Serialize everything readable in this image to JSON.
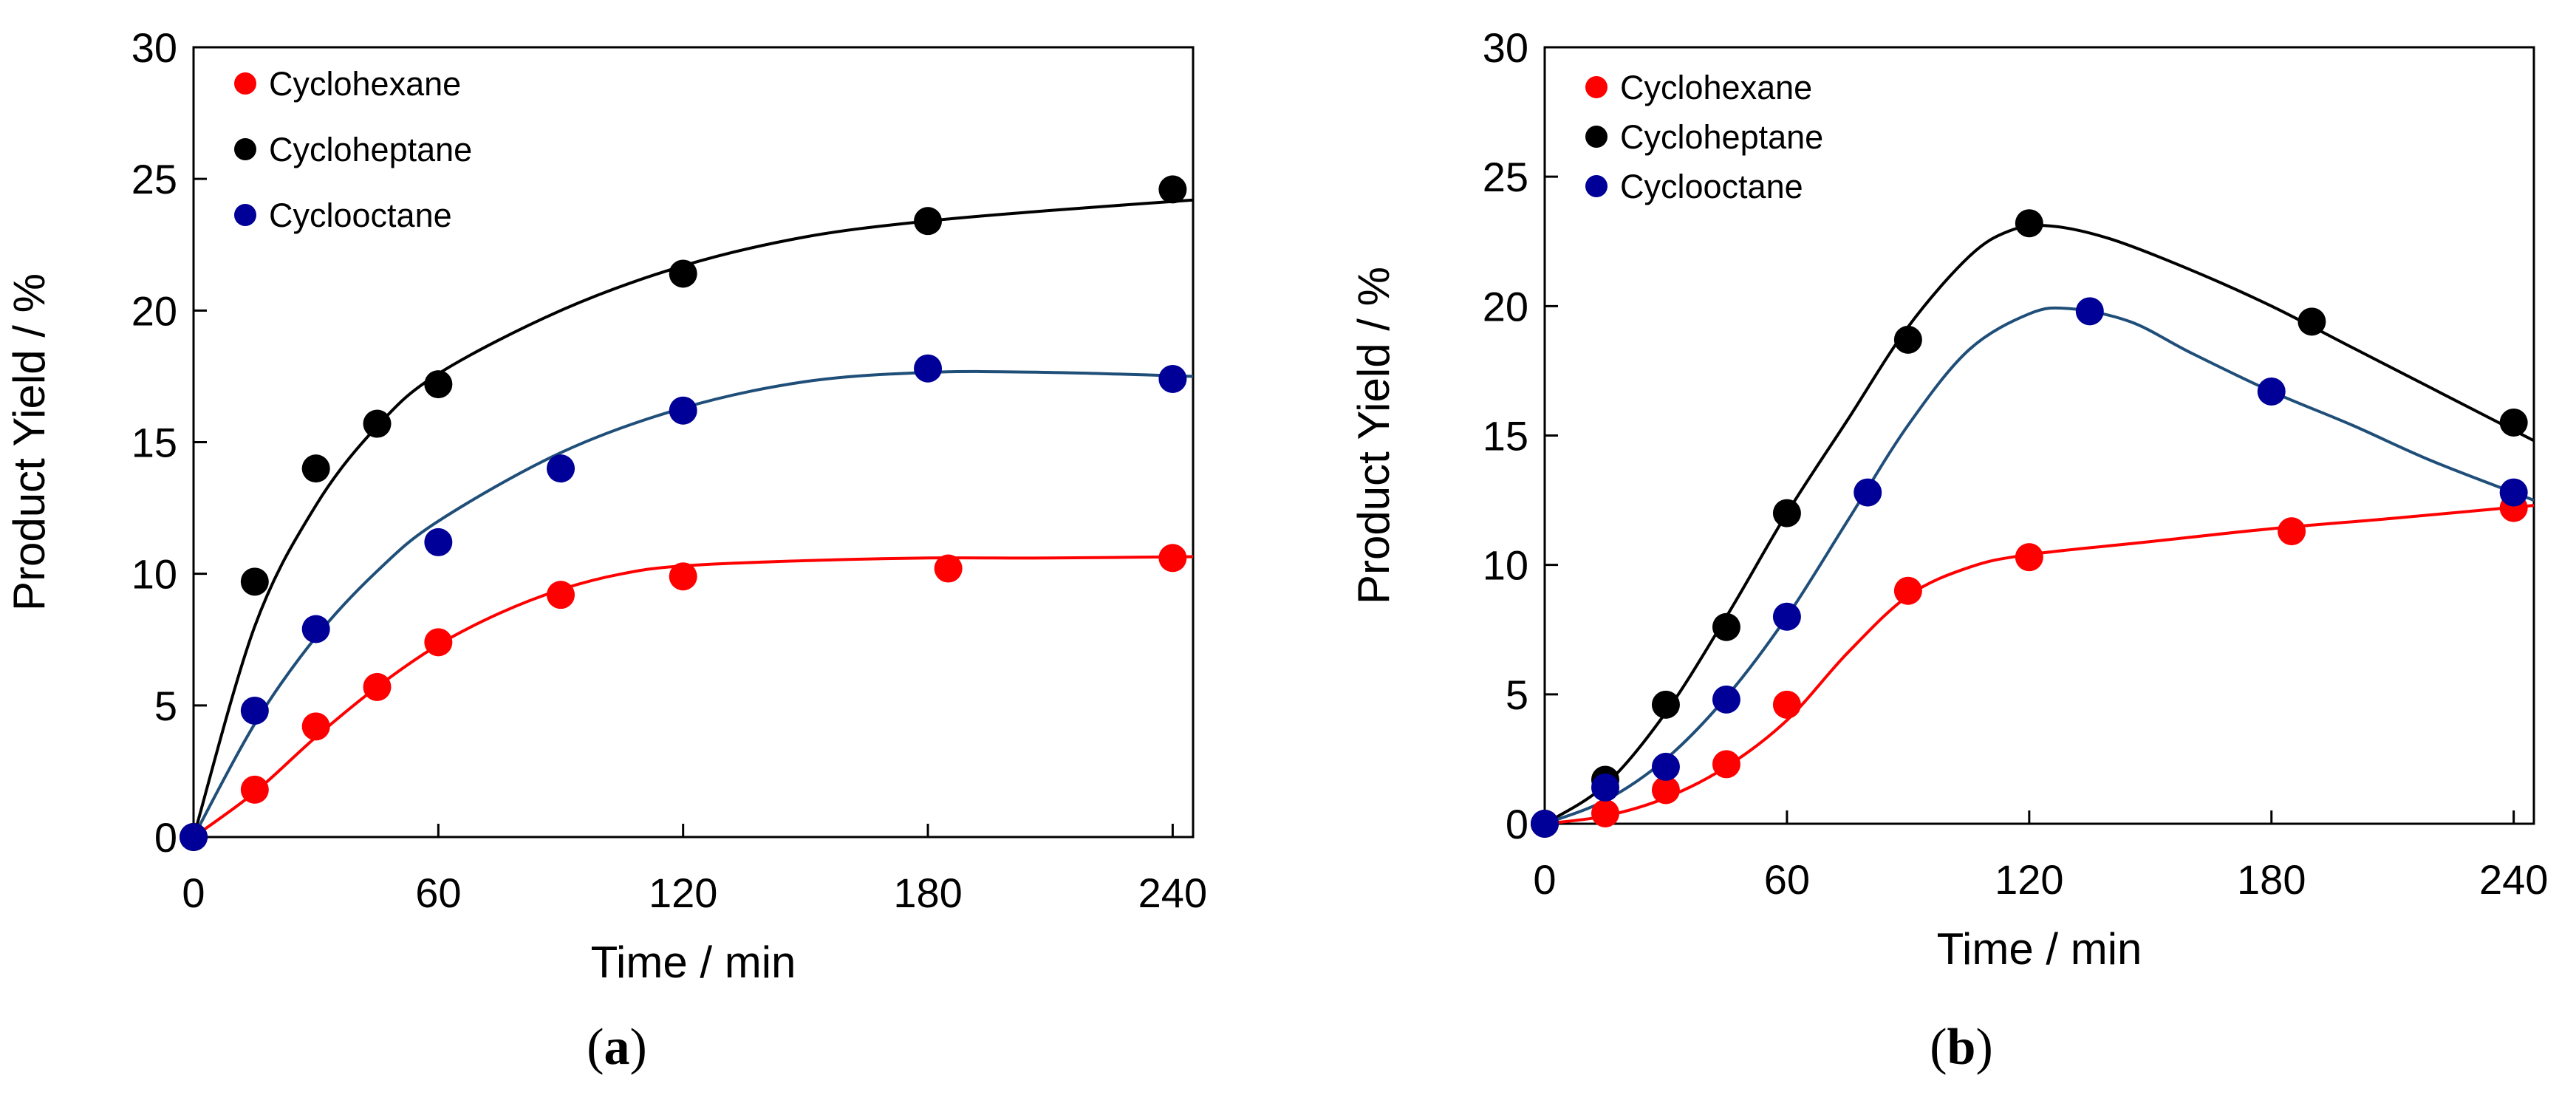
{
  "chart_data": [
    {
      "type": "scatter",
      "panel_label": "a",
      "xlabel": "Time / min",
      "ylabel": "Product Yield / %",
      "xlim": [
        0,
        245
      ],
      "ylim": [
        0,
        30
      ],
      "xticks": [
        0,
        60,
        120,
        180,
        240
      ],
      "yticks": [
        0,
        5,
        10,
        15,
        20,
        25,
        30
      ],
      "legend_position": "top-left",
      "series": [
        {
          "name": "Cyclohexane",
          "color": "#ff0000",
          "line_color": "#ff0000",
          "points": [
            [
              0,
              0
            ],
            [
              15,
              1.8
            ],
            [
              30,
              4.2
            ],
            [
              45,
              5.7
            ],
            [
              60,
              7.4
            ],
            [
              90,
              9.2
            ],
            [
              120,
              9.9
            ],
            [
              185,
              10.2
            ],
            [
              240,
              10.6
            ]
          ],
          "fit": [
            [
              0,
              0
            ],
            [
              15,
              1.7
            ],
            [
              30,
              3.8
            ],
            [
              45,
              5.7
            ],
            [
              60,
              7.3
            ],
            [
              75,
              8.5
            ],
            [
              90,
              9.4
            ],
            [
              105,
              10.0
            ],
            [
              120,
              10.3
            ],
            [
              150,
              10.5
            ],
            [
              180,
              10.6
            ],
            [
              210,
              10.6
            ],
            [
              245,
              10.65
            ]
          ]
        },
        {
          "name": "Cycloheptane",
          "color": "#000000",
          "line_color": "#000000",
          "points": [
            [
              0,
              0
            ],
            [
              15,
              9.7
            ],
            [
              30,
              14.0
            ],
            [
              45,
              15.7
            ],
            [
              60,
              17.2
            ],
            [
              120,
              21.4
            ],
            [
              180,
              23.4
            ],
            [
              240,
              24.6
            ]
          ],
          "fit": [
            [
              0,
              0
            ],
            [
              15,
              8.0
            ],
            [
              30,
              12.6
            ],
            [
              45,
              15.6
            ],
            [
              60,
              17.6
            ],
            [
              90,
              20.0
            ],
            [
              120,
              21.7
            ],
            [
              150,
              22.8
            ],
            [
              180,
              23.4
            ],
            [
              210,
              23.8
            ],
            [
              245,
              24.2
            ]
          ]
        },
        {
          "name": "Cyclooctane",
          "color": "#000099",
          "line_color": "#1f4e79",
          "points": [
            [
              0,
              0
            ],
            [
              15,
              4.8
            ],
            [
              30,
              7.9
            ],
            [
              60,
              11.2
            ],
            [
              90,
              14.0
            ],
            [
              120,
              16.2
            ],
            [
              180,
              17.8
            ],
            [
              240,
              17.4
            ]
          ],
          "fit": [
            [
              0,
              0
            ],
            [
              15,
              4.3
            ],
            [
              30,
              7.6
            ],
            [
              45,
              10.1
            ],
            [
              60,
              12.0
            ],
            [
              90,
              14.6
            ],
            [
              120,
              16.3
            ],
            [
              150,
              17.3
            ],
            [
              180,
              17.65
            ],
            [
              210,
              17.65
            ],
            [
              245,
              17.5
            ]
          ]
        }
      ]
    },
    {
      "type": "scatter",
      "panel_label": "b",
      "xlabel": "Time / min",
      "ylabel": "Product Yield / %",
      "xlim": [
        0,
        245
      ],
      "ylim": [
        0,
        30
      ],
      "xticks": [
        0,
        60,
        120,
        180,
        240
      ],
      "yticks": [
        0,
        5,
        10,
        15,
        20,
        25,
        30
      ],
      "legend_position": "top-left",
      "series": [
        {
          "name": "Cyclohexane",
          "color": "#ff0000",
          "line_color": "#ff0000",
          "points": [
            [
              0,
              0
            ],
            [
              15,
              0.4
            ],
            [
              30,
              1.3
            ],
            [
              45,
              2.3
            ],
            [
              60,
              4.6
            ],
            [
              90,
              9.0
            ],
            [
              120,
              10.3
            ],
            [
              185,
              11.3
            ],
            [
              240,
              12.2
            ]
          ],
          "fit": [
            [
              0,
              0
            ],
            [
              15,
              0.3
            ],
            [
              30,
              1.0
            ],
            [
              45,
              2.2
            ],
            [
              60,
              4.0
            ],
            [
              75,
              6.6
            ],
            [
              90,
              8.8
            ],
            [
              105,
              9.9
            ],
            [
              120,
              10.4
            ],
            [
              150,
              10.9
            ],
            [
              180,
              11.4
            ],
            [
              210,
              11.8
            ],
            [
              245,
              12.3
            ]
          ]
        },
        {
          "name": "Cycloheptane",
          "color": "#000000",
          "line_color": "#000000",
          "points": [
            [
              0,
              0
            ],
            [
              15,
              1.7
            ],
            [
              30,
              4.6
            ],
            [
              45,
              7.6
            ],
            [
              60,
              12.0
            ],
            [
              90,
              18.7
            ],
            [
              120,
              23.2
            ],
            [
              190,
              19.4
            ],
            [
              240,
              15.5
            ]
          ],
          "fit": [
            [
              0,
              0
            ],
            [
              15,
              1.5
            ],
            [
              30,
              4.3
            ],
            [
              45,
              8.0
            ],
            [
              60,
              12.0
            ],
            [
              75,
              15.6
            ],
            [
              90,
              19.2
            ],
            [
              105,
              21.9
            ],
            [
              115,
              22.9
            ],
            [
              125,
              23.1
            ],
            [
              140,
              22.6
            ],
            [
              160,
              21.4
            ],
            [
              180,
              20.0
            ],
            [
              200,
              18.4
            ],
            [
              220,
              16.8
            ],
            [
              245,
              14.8
            ]
          ]
        },
        {
          "name": "Cyclooctane",
          "color": "#000099",
          "line_color": "#1f4e79",
          "points": [
            [
              0,
              0
            ],
            [
              15,
              1.4
            ],
            [
              30,
              2.2
            ],
            [
              45,
              4.8
            ],
            [
              60,
              8.0
            ],
            [
              80,
              12.8
            ],
            [
              135,
              19.8
            ],
            [
              180,
              16.7
            ],
            [
              240,
              12.8
            ]
          ],
          "fit": [
            [
              0,
              0
            ],
            [
              15,
              0.9
            ],
            [
              30,
              2.5
            ],
            [
              45,
              4.9
            ],
            [
              60,
              8.0
            ],
            [
              75,
              11.7
            ],
            [
              90,
              15.4
            ],
            [
              105,
              18.3
            ],
            [
              120,
              19.7
            ],
            [
              130,
              19.9
            ],
            [
              145,
              19.4
            ],
            [
              160,
              18.2
            ],
            [
              180,
              16.7
            ],
            [
              200,
              15.4
            ],
            [
              220,
              14.0
            ],
            [
              245,
              12.5
            ]
          ]
        }
      ]
    }
  ]
}
